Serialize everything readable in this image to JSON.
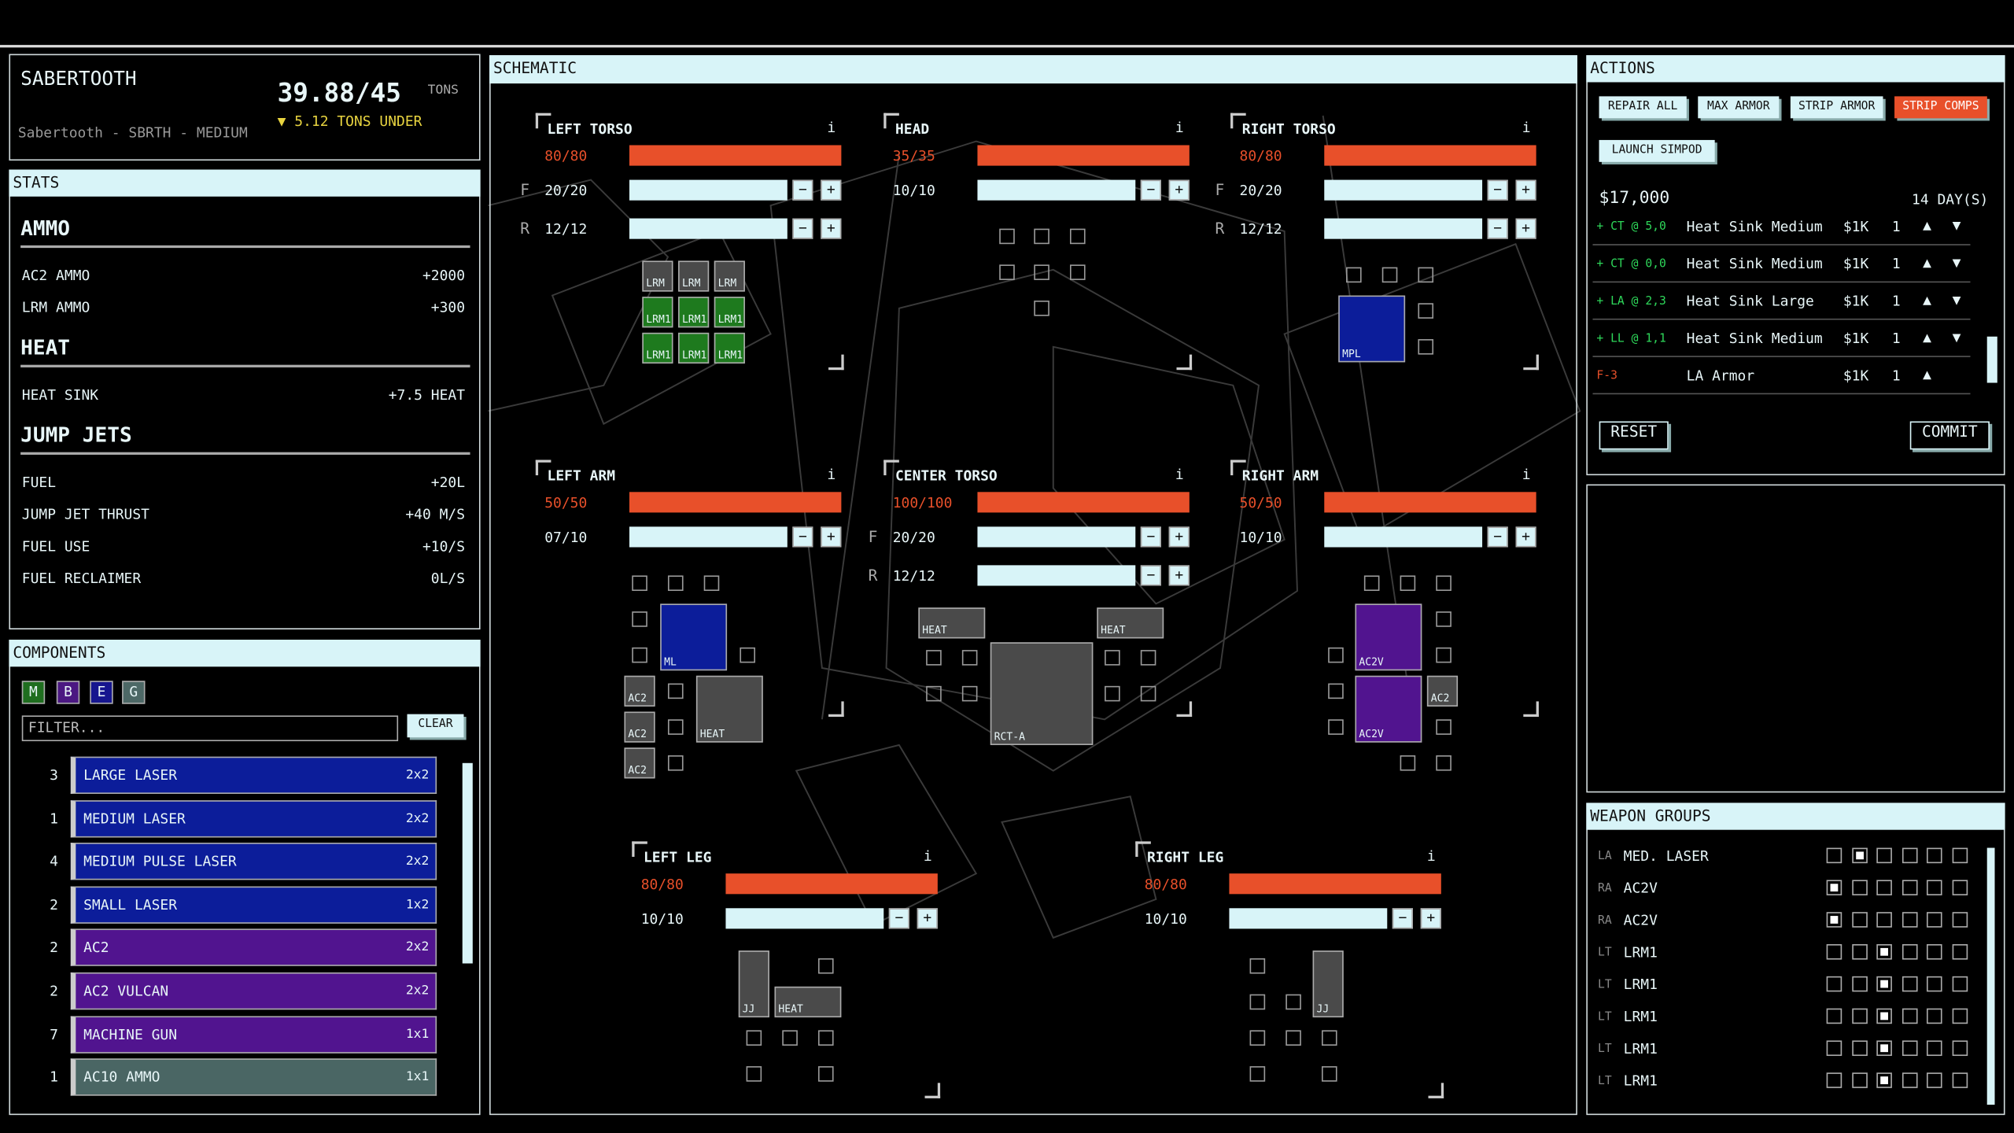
{
  "header": {
    "name": "SABERTOOTH",
    "tonnage": "39.88/45",
    "tonnage_unit": "TONS",
    "variant": "Sabertooth - SBRTH - MEDIUM",
    "under": "▼ 5.12 TONS UNDER"
  },
  "stats": {
    "title": "STATS",
    "sections": [
      {
        "title": "AMMO",
        "rows": [
          {
            "label": "AC2 AMMO",
            "value": "+2000"
          },
          {
            "label": "LRM AMMO",
            "value": "+300"
          }
        ]
      },
      {
        "title": "HEAT",
        "rows": [
          {
            "label": "HEAT SINK",
            "value": "+7.5 HEAT"
          }
        ]
      },
      {
        "title": "JUMP JETS",
        "rows": [
          {
            "label": "FUEL",
            "value": "+20L"
          },
          {
            "label": "JUMP JET THRUST",
            "value": "+40 M/S"
          },
          {
            "label": "FUEL USE",
            "value": "+10/S"
          },
          {
            "label": "FUEL RECLAIMER",
            "value": "0L/S"
          }
        ]
      }
    ]
  },
  "components": {
    "title": "COMPONENTS",
    "filters": [
      {
        "label": "M",
        "color": "#1f6e1f"
      },
      {
        "label": "B",
        "color": "#4b1882"
      },
      {
        "label": "E",
        "color": "#16168f"
      },
      {
        "label": "G",
        "color": "#4d6866"
      }
    ],
    "filter_placeholder": "FILTER...",
    "clear": "CLEAR",
    "items": [
      {
        "count": 3,
        "name": "LARGE LASER",
        "size": "2x2",
        "color": "#0c1d9a"
      },
      {
        "count": 1,
        "name": "MEDIUM LASER",
        "size": "2x2",
        "color": "#0c1d9a"
      },
      {
        "count": 4,
        "name": "MEDIUM PULSE LASER",
        "size": "2x2",
        "color": "#0c1d9a"
      },
      {
        "count": 2,
        "name": "SMALL LASER",
        "size": "1x2",
        "color": "#0c1d9a"
      },
      {
        "count": 2,
        "name": "AC2",
        "size": "2x2",
        "color": "#51148f"
      },
      {
        "count": 2,
        "name": "AC2 VULCAN",
        "size": "2x2",
        "color": "#51148f"
      },
      {
        "count": 7,
        "name": "MACHINE GUN",
        "size": "1x1",
        "color": "#51148f"
      },
      {
        "count": 1,
        "name": "AC10 AMMO",
        "size": "1x1",
        "color": "#4a6664"
      }
    ]
  },
  "schematic": {
    "title": "SCHEMATIC",
    "info": "i",
    "minus": "−",
    "plus": "+",
    "locations": [
      {
        "name": "LEFT TORSO",
        "armor": "80/80",
        "rows": [
          {
            "side": "F",
            "value": "20/20"
          },
          {
            "side": "R",
            "value": "12/12"
          }
        ],
        "items": [
          {
            "label": "LRM",
            "color": "#4a4a4a"
          },
          {
            "label": "LRM",
            "color": "#4a4a4a"
          },
          {
            "label": "LRM",
            "color": "#4a4a4a"
          },
          {
            "label": "LRM1",
            "color": "#1e7a1e"
          },
          {
            "label": "LRM1",
            "color": "#1e7a1e"
          },
          {
            "label": "LRM1",
            "color": "#1e7a1e"
          },
          {
            "label": "LRM1",
            "color": "#1e7a1e"
          },
          {
            "label": "LRM1",
            "color": "#1e7a1e"
          },
          {
            "label": "LRM1",
            "color": "#1e7a1e"
          }
        ]
      },
      {
        "name": "HEAD",
        "armor": "35/35",
        "rows": [
          {
            "value": "10/10"
          }
        ],
        "items": []
      },
      {
        "name": "RIGHT TORSO",
        "armor": "80/80",
        "rows": [
          {
            "side": "F",
            "value": "20/20"
          },
          {
            "side": "R",
            "value": "12/12"
          }
        ],
        "items": [
          {
            "label": "MPL",
            "color": "#0c1d9a"
          }
        ]
      },
      {
        "name": "LEFT ARM",
        "armor": "50/50",
        "rows": [
          {
            "value": "07/10"
          }
        ],
        "items": [
          {
            "label": "ML",
            "color": "#0c1d9a"
          },
          {
            "label": "AC2",
            "color": "#4a4a4a"
          },
          {
            "label": "AC2",
            "color": "#4a4a4a"
          },
          {
            "label": "AC2",
            "color": "#4a4a4a"
          },
          {
            "label": "HEAT",
            "color": "#4a4a4a"
          }
        ]
      },
      {
        "name": "CENTER TORSO",
        "armor": "100/100",
        "rows": [
          {
            "side": "F",
            "value": "20/20"
          },
          {
            "side": "R",
            "value": "12/12"
          }
        ],
        "items": [
          {
            "label": "HEAT",
            "color": "#4a4a4a"
          },
          {
            "label": "HEAT",
            "color": "#4a4a4a"
          },
          {
            "label": "RCT-A",
            "color": "#4a4a4a"
          }
        ]
      },
      {
        "name": "RIGHT ARM",
        "armor": "50/50",
        "rows": [
          {
            "value": "10/10"
          }
        ],
        "items": [
          {
            "label": "AC2V",
            "color": "#51148f"
          },
          {
            "label": "AC2V",
            "color": "#51148f"
          },
          {
            "label": "AC2",
            "color": "#4a4a4a"
          }
        ]
      },
      {
        "name": "LEFT LEG",
        "armor": "80/80",
        "rows": [
          {
            "value": "10/10"
          }
        ],
        "items": [
          {
            "label": "JJ",
            "color": "#4a4a4a"
          },
          {
            "label": "HEAT",
            "color": "#4a4a4a"
          }
        ]
      },
      {
        "name": "RIGHT LEG",
        "armor": "80/80",
        "rows": [
          {
            "value": "10/10"
          }
        ],
        "items": [
          {
            "label": "JJ",
            "color": "#4a4a4a"
          }
        ]
      }
    ]
  },
  "actions": {
    "title": "ACTIONS",
    "buttons": [
      {
        "label": "REPAIR ALL"
      },
      {
        "label": "MAX ARMOR"
      },
      {
        "label": "STRIP ARMOR"
      },
      {
        "label": "STRIP COMPS",
        "color": "#e8502a"
      },
      {
        "label": "LAUNCH SIMPOD"
      }
    ],
    "cost": "$17,000",
    "duration": "14 DAY(S)",
    "up": "▲",
    "down": "▼",
    "orders": [
      {
        "op": "+ CT @ 5,0",
        "item": "Heat Sink Medium",
        "cost": "$1K",
        "qty": 1,
        "color": "#2ed85a"
      },
      {
        "op": "+ CT @ 0,0",
        "item": "Heat Sink Medium",
        "cost": "$1K",
        "qty": 1,
        "color": "#2ed85a"
      },
      {
        "op": "+ LA @ 2,3",
        "item": "Heat Sink Large",
        "cost": "$1K",
        "qty": 1,
        "color": "#2ed85a"
      },
      {
        "op": "+ LL @ 1,1",
        "item": "Heat Sink Medium",
        "cost": "$1K",
        "qty": 1,
        "color": "#2ed85a"
      },
      {
        "op": "F-3",
        "item": "LA Armor",
        "cost": "$1K",
        "qty": 1,
        "color": "#e8502a"
      }
    ],
    "reset": "RESET",
    "commit": "COMMIT"
  },
  "weapon_groups": {
    "title": "WEAPON GROUPS",
    "rows": [
      {
        "loc": "LA",
        "name": "MED. LASER",
        "group": 1
      },
      {
        "loc": "RA",
        "name": "AC2V",
        "group": 0
      },
      {
        "loc": "RA",
        "name": "AC2V",
        "group": 0
      },
      {
        "loc": "LT",
        "name": "LRM1",
        "group": 2
      },
      {
        "loc": "LT",
        "name": "LRM1",
        "group": 2
      },
      {
        "loc": "LT",
        "name": "LRM1",
        "group": 2
      },
      {
        "loc": "LT",
        "name": "LRM1",
        "group": 2
      },
      {
        "loc": "LT",
        "name": "LRM1",
        "group": 2
      }
    ]
  }
}
